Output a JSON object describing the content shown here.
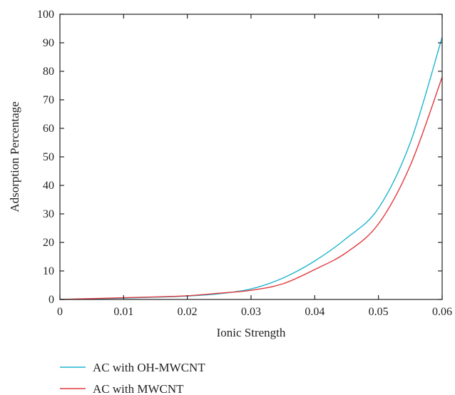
{
  "chart_data": {
    "type": "line",
    "title": "",
    "xlabel": "Ionic Strength",
    "ylabel": "Adsorption Percentage",
    "xlim": [
      0,
      0.06
    ],
    "ylim": [
      0,
      100
    ],
    "x_ticks": [
      0,
      0.01,
      0.02,
      0.03,
      0.04,
      0.05,
      0.06
    ],
    "x_tick_labels": [
      "0",
      "0.01",
      "0.02",
      "0.03",
      "0.04",
      "0.05",
      "0.06"
    ],
    "y_ticks": [
      0,
      10,
      20,
      30,
      40,
      50,
      60,
      70,
      80,
      90,
      100
    ],
    "y_tick_labels": [
      "0",
      "10",
      "20",
      "30",
      "40",
      "50",
      "60",
      "70",
      "80",
      "90",
      "100"
    ],
    "grid": false,
    "legend_position": "bottom-left, below plot",
    "series": [
      {
        "name": "AC with OH-MWCNT",
        "color": "#1fb3cf",
        "x": [
          0,
          0.005,
          0.01,
          0.015,
          0.02,
          0.025,
          0.03,
          0.035,
          0.04,
          0.045,
          0.05,
          0.055,
          0.06
        ],
        "y": [
          0,
          0.2,
          0.5,
          0.8,
          1.2,
          2.0,
          3.7,
          7.5,
          13.5,
          21.5,
          32.0,
          55.0,
          92.0
        ]
      },
      {
        "name": "AC with MWCNT",
        "color": "#e0393e",
        "x": [
          0,
          0.005,
          0.01,
          0.015,
          0.02,
          0.025,
          0.03,
          0.035,
          0.04,
          0.045,
          0.05,
          0.055,
          0.06
        ],
        "y": [
          0,
          0.3,
          0.6,
          0.9,
          1.3,
          2.2,
          3.2,
          5.5,
          10.5,
          16.5,
          26.5,
          47.0,
          78.0
        ]
      }
    ]
  }
}
